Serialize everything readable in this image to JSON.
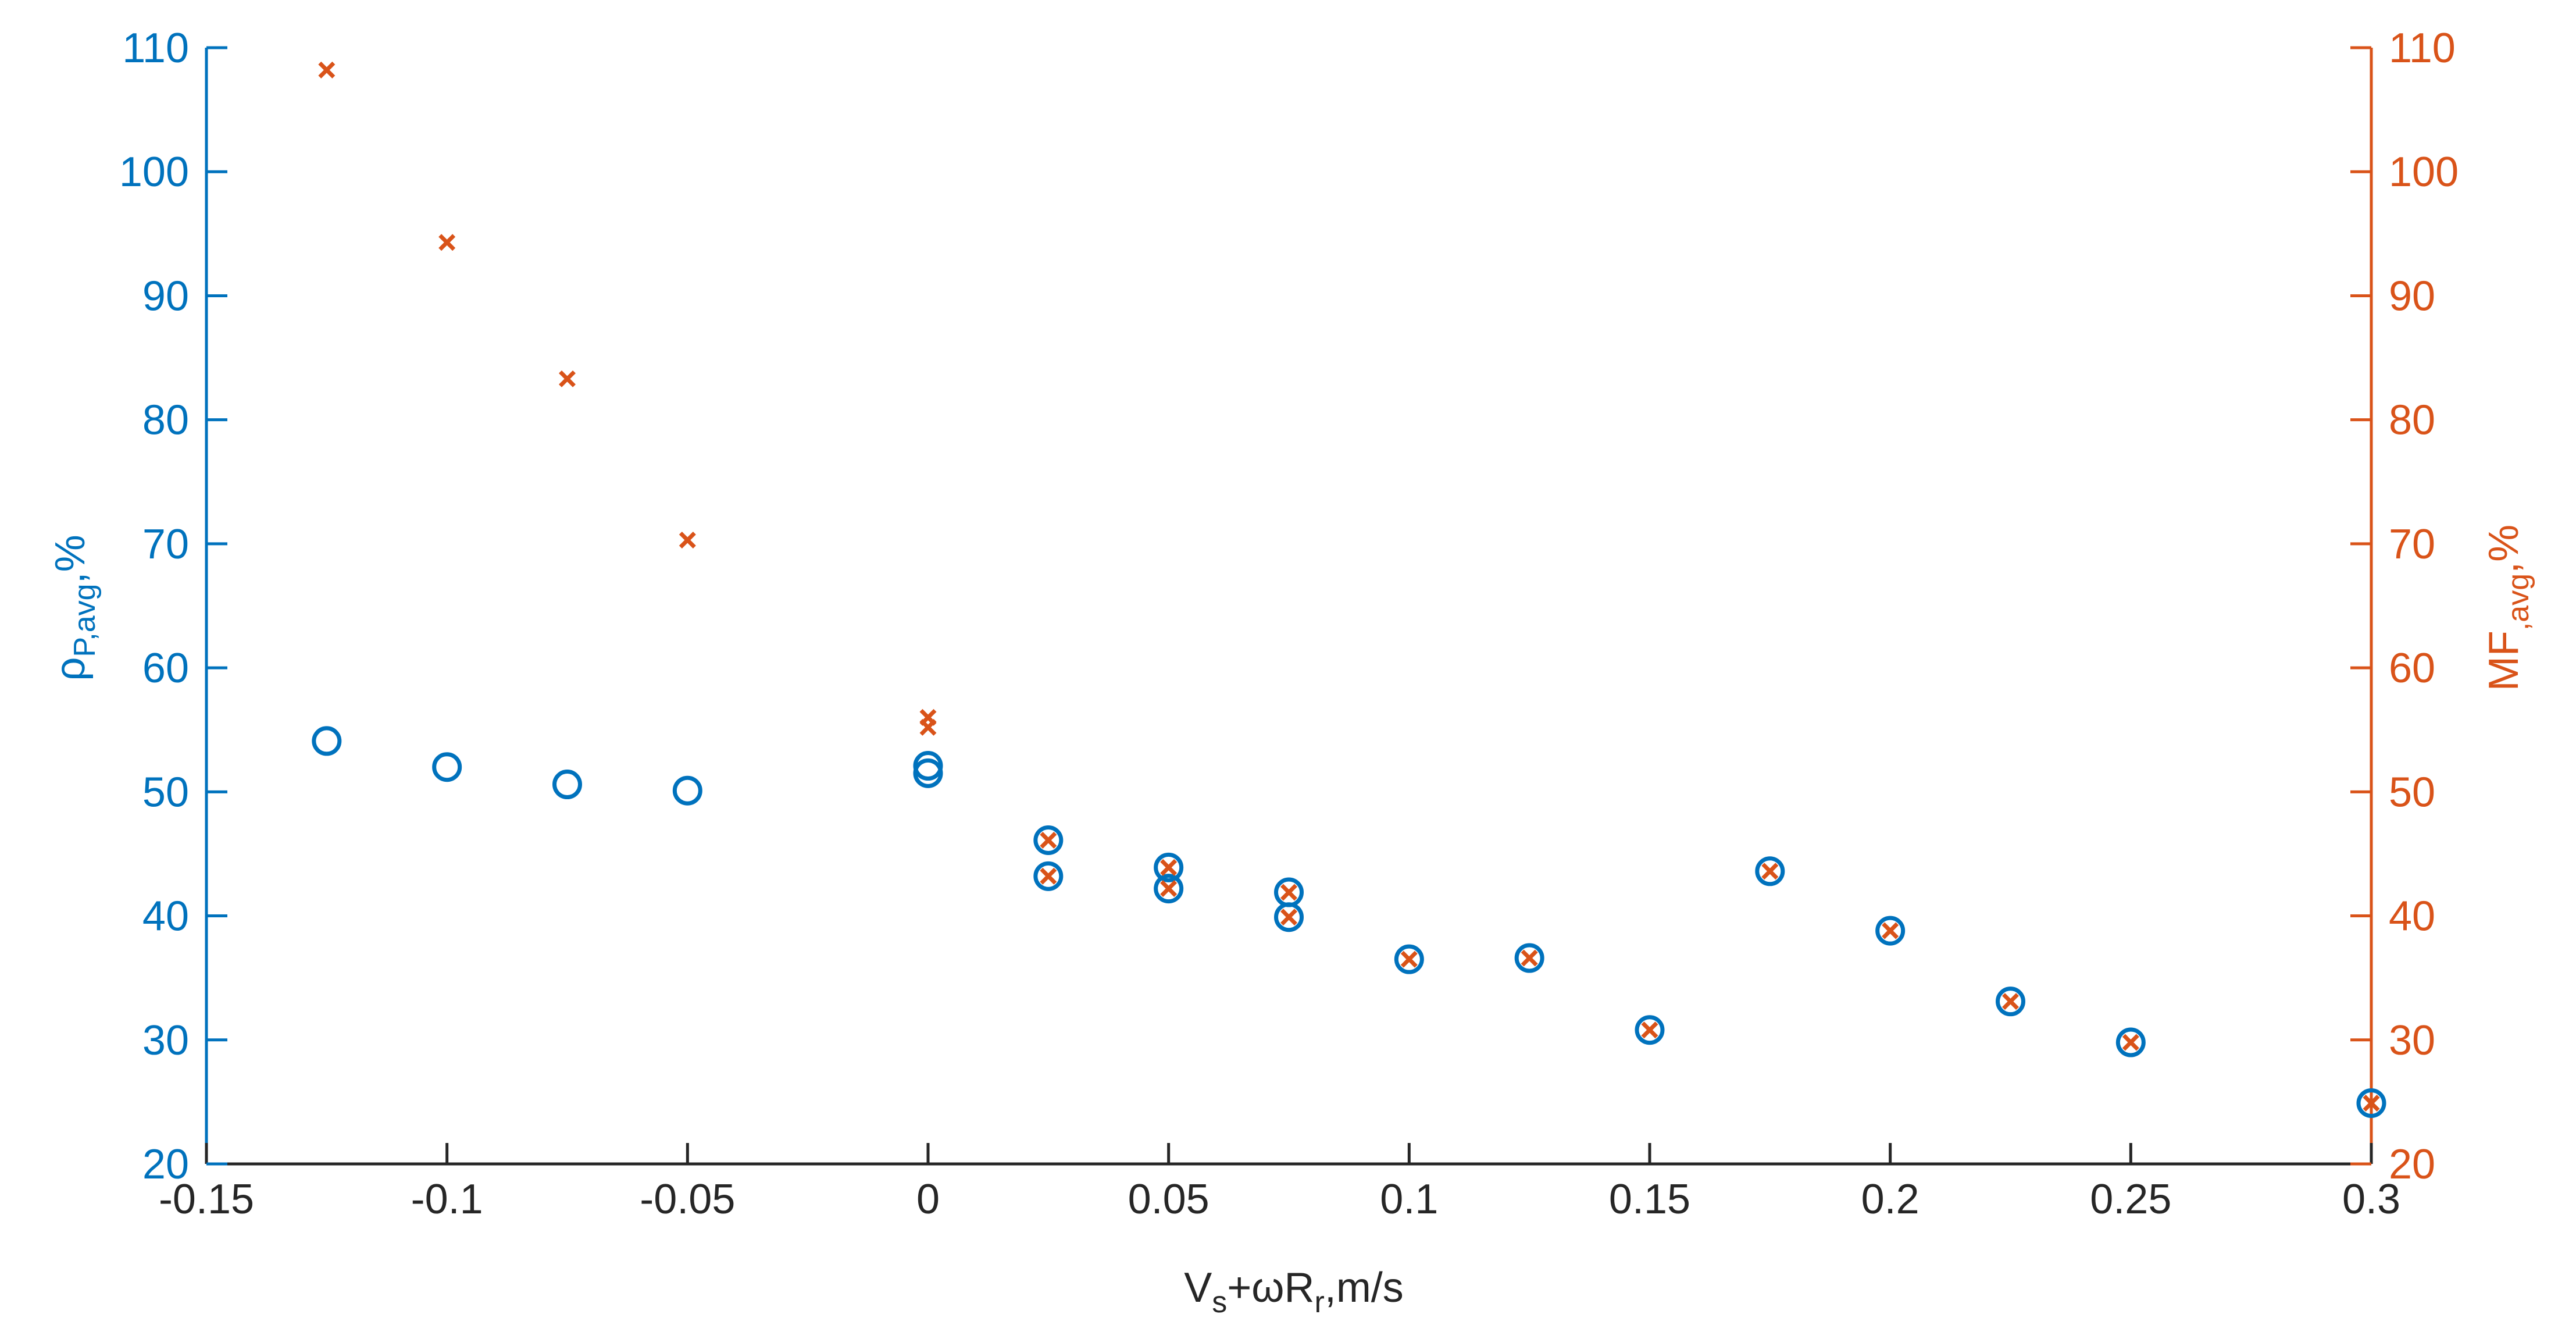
{
  "chart_data": {
    "type": "scatter",
    "xlabel": {
      "base": "V",
      "sub1": "s",
      "mid": "+ωR",
      "sub2": "r",
      "tail": ",m/s"
    },
    "ylabel_left": {
      "base": "ρ",
      "sub": "P,avg",
      "tail": ",%"
    },
    "ylabel_right": {
      "base": "MF",
      "sub": ",avg",
      "tail": ",%"
    },
    "xlim": [
      -0.15,
      0.3
    ],
    "ylim": [
      20,
      110
    ],
    "xticks": [
      -0.15,
      -0.1,
      -0.05,
      0,
      0.05,
      0.1,
      0.15,
      0.2,
      0.25,
      0.3
    ],
    "xtick_labels": [
      "-0.15",
      "-0.1",
      "-0.05",
      "0",
      "0.05",
      "0.1",
      "0.15",
      "0.2",
      "0.25",
      "0.3"
    ],
    "yticks": [
      20,
      30,
      40,
      50,
      60,
      70,
      80,
      90,
      100,
      110
    ],
    "ytick_labels": [
      "20",
      "30",
      "40",
      "50",
      "60",
      "70",
      "80",
      "90",
      "100",
      "110"
    ],
    "grid": false,
    "legend": "none",
    "colors": {
      "left": "#0072BD",
      "right": "#D95319"
    },
    "series": [
      {
        "axis": "left",
        "marker": "circle",
        "color": "#0072BD",
        "points": [
          [
            -0.125,
            54.1
          ],
          [
            -0.1,
            52.0
          ],
          [
            -0.075,
            50.6
          ],
          [
            -0.05,
            50.1
          ],
          [
            0,
            52.1
          ],
          [
            0,
            51.5
          ],
          [
            0.025,
            46.1
          ],
          [
            0.025,
            43.2
          ],
          [
            0.05,
            43.9
          ],
          [
            0.05,
            42.2
          ],
          [
            0.075,
            41.9
          ],
          [
            0.075,
            39.9
          ],
          [
            0.1,
            36.5
          ],
          [
            0.125,
            36.6
          ],
          [
            0.15,
            30.8
          ],
          [
            0.175,
            43.6
          ],
          [
            0.2,
            38.8
          ],
          [
            0.225,
            33.1
          ],
          [
            0.25,
            29.8
          ],
          [
            0.3,
            24.9
          ]
        ]
      },
      {
        "axis": "right",
        "marker": "x",
        "color": "#D95319",
        "points": [
          [
            -0.125,
            108.2
          ],
          [
            -0.1,
            94.3
          ],
          [
            -0.075,
            83.3
          ],
          [
            -0.05,
            70.3
          ],
          [
            0,
            56.0
          ],
          [
            0,
            55.2
          ],
          [
            0.025,
            46.1
          ],
          [
            0.025,
            43.2
          ],
          [
            0.05,
            43.9
          ],
          [
            0.05,
            42.2
          ],
          [
            0.075,
            41.9
          ],
          [
            0.075,
            39.9
          ],
          [
            0.1,
            36.5
          ],
          [
            0.125,
            36.6
          ],
          [
            0.15,
            30.8
          ],
          [
            0.175,
            43.6
          ],
          [
            0.2,
            38.8
          ],
          [
            0.225,
            33.1
          ],
          [
            0.25,
            29.8
          ],
          [
            0.3,
            24.9
          ]
        ]
      }
    ]
  }
}
